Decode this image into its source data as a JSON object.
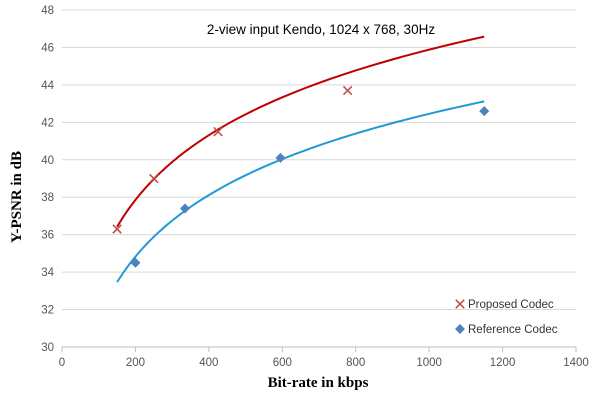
{
  "chart_data": {
    "type": "scatter",
    "title": "2-view input Kendo, 1024 x 768, 30Hz",
    "xlabel": "Bit-rate in kbps",
    "ylabel": "Y-PSNR  in dB",
    "xlim": [
      0,
      1400
    ],
    "ylim": [
      30,
      48
    ],
    "xticks": [
      0,
      200,
      400,
      600,
      800,
      1000,
      1200,
      1400
    ],
    "yticks": [
      30,
      32,
      34,
      36,
      38,
      40,
      42,
      44,
      46,
      48
    ],
    "grid": {
      "x": false,
      "y": true
    },
    "legend_position": "bottom-right",
    "series": [
      {
        "name": "Proposed Codec",
        "marker": "x",
        "color": "#c0504d",
        "points": [
          [
            150,
            36.3
          ],
          [
            250,
            39.0
          ],
          [
            425,
            41.5
          ],
          [
            778,
            43.7
          ]
        ],
        "trendline": {
          "type": "logarithmic",
          "a": 4.986,
          "b": 11.44,
          "x_range": [
            150,
            1150
          ],
          "color": "#c00000"
        }
      },
      {
        "name": "Reference Codec",
        "marker": "diamond",
        "color": "#4f81bd",
        "points": [
          [
            200,
            34.5
          ],
          [
            335,
            37.4
          ],
          [
            595,
            40.1
          ],
          [
            1150,
            42.6
          ]
        ],
        "trendline": {
          "type": "logarithmic",
          "a": 4.739,
          "b": 9.72,
          "x_range": [
            150,
            1150
          ],
          "color": "#1f9ad6"
        }
      }
    ]
  }
}
